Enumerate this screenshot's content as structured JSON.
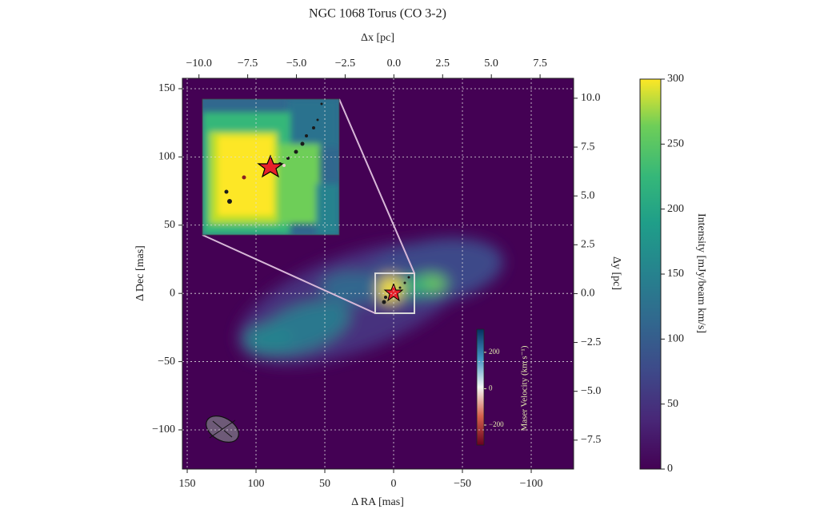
{
  "chart_data": {
    "type": "heatmap",
    "title": "NGC 1068 Torus (CO 3-2)",
    "xlabel": "Δ RA [mas]",
    "ylabel": "Δ Dec [mas]",
    "x2label": "Δx [pc]",
    "y2label": "Δy [pc]",
    "xlim": [
      153.5,
      -130.8
    ],
    "xticks": [
      150,
      100,
      50,
      0,
      {
        "value": -50,
        "label": "−50"
      },
      {
        "value": -100,
        "label": "−100"
      }
    ],
    "ylim": [
      -128.7,
      157.6
    ],
    "yticks": [
      150,
      100,
      50,
      0,
      {
        "value": -50,
        "label": "−50"
      },
      {
        "value": -100,
        "label": "−100"
      }
    ],
    "x2lim": [
      -10.85,
      9.22
    ],
    "x2ticks": [
      {
        "value": -10,
        "label": "−10.0"
      },
      {
        "value": -7.5,
        "label": "−7.5"
      },
      {
        "value": -5,
        "label": "−5.0"
      },
      {
        "value": -2.5,
        "label": "−2.5"
      },
      {
        "value": 0,
        "label": "0.0"
      },
      2.5,
      {
        "value": 5,
        "label": "5.0"
      },
      7.5
    ],
    "y2lim": [
      -8.98,
      11.02
    ],
    "y2ticks": [
      {
        "value": 10,
        "label": "10.0"
      },
      7.5,
      {
        "value": 5,
        "label": "5.0"
      },
      2.5,
      {
        "value": 0,
        "label": "0.0"
      },
      {
        "value": -2.5,
        "label": "−2.5"
      },
      {
        "value": -5,
        "label": "−5.0"
      },
      {
        "value": -7.5,
        "label": "−7.5"
      }
    ],
    "grid": true,
    "colorbar": {
      "label": "Intensity [mJy/beam km/s]",
      "colormap": "viridis",
      "lim": [
        0,
        300
      ],
      "ticks": [
        0,
        50,
        100,
        150,
        200,
        250,
        300
      ]
    },
    "maser_colorbar": {
      "label": "Maser Velocity (km s⁻¹)",
      "colormap": "RdBu",
      "lim": [
        -310,
        327
      ],
      "ticks": [
        {
          "value": -200,
          "label": "−200"
        },
        0,
        200
      ]
    }
  }
}
